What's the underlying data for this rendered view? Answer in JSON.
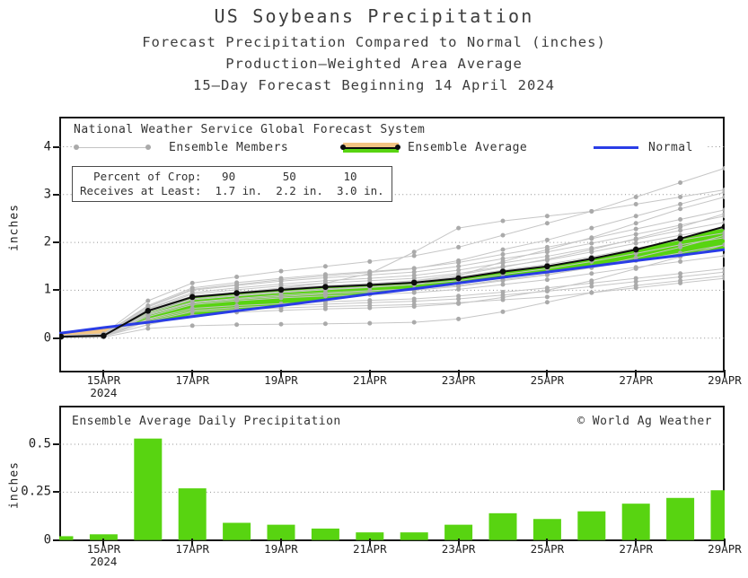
{
  "header": {
    "title": "US Soybeans Precipitation",
    "subtitle1": "Forecast Precipitation Compared to Normal (inches)",
    "subtitle2": "Production–Weighted Area Average",
    "subtitle3": "15–Day Forecast Beginning 14 April 2024"
  },
  "top_chart": {
    "legend": {
      "source": "National Weather Service Global Forecast System",
      "members_label": "Ensemble Members",
      "average_label": "Ensemble Average",
      "normal_label": "Normal"
    },
    "crop_box": {
      "line1": "  Percent of Crop:   90       50       10",
      "line2": "Receives at Least:  1.7 in.  2.2 in.  3.0 in."
    },
    "y_axis_label": "inches",
    "y_ticks": [
      0,
      1,
      2,
      3,
      4
    ]
  },
  "bottom_chart": {
    "title": "Ensemble Average Daily Precipitation",
    "credit": "© World Ag Weather",
    "y_axis_label": "inches",
    "y_ticks": [
      0,
      0.25,
      0.5
    ]
  },
  "x_ticks": [
    {
      "day": 1,
      "label": "15APR",
      "sub": "2024"
    },
    {
      "day": 3,
      "label": "17APR"
    },
    {
      "day": 5,
      "label": "19APR"
    },
    {
      "day": 7,
      "label": "21APR"
    },
    {
      "day": 9,
      "label": "23APR"
    },
    {
      "day": 11,
      "label": "25APR"
    },
    {
      "day": 13,
      "label": "27APR"
    },
    {
      "day": 15,
      "label": "29APR"
    }
  ],
  "colors": {
    "green": "#58d411",
    "orange": "#f2c583",
    "blue": "#2a3de6",
    "member_line": "#c6c6c6",
    "member_dot": "#aaaaaa",
    "average_black": "#0d0d0d",
    "grid": "#909090",
    "border": "#161616"
  },
  "chart_data": [
    {
      "type": "line",
      "title": "Forecast cumulative precipitation vs normal (inches)",
      "x": [
        "14APR",
        "15APR",
        "16APR",
        "17APR",
        "18APR",
        "19APR",
        "20APR",
        "21APR",
        "22APR",
        "23APR",
        "24APR",
        "25APR",
        "26APR",
        "27APR",
        "28APR",
        "29APR"
      ],
      "ylabel": "inches",
      "ylim": [
        -0.7,
        4.63
      ],
      "yticks": [
        0,
        1,
        2,
        3,
        4
      ],
      "grid": true,
      "legend_position": "top-left-inside",
      "series": [
        {
          "name": "Ensemble Average",
          "values": [
            0.03,
            0.05,
            0.57,
            0.86,
            0.94,
            1.01,
            1.07,
            1.11,
            1.16,
            1.25,
            1.39,
            1.5,
            1.66,
            1.85,
            2.08,
            2.33
          ]
        },
        {
          "name": "Normal",
          "values": [
            0.1,
            0.22,
            0.33,
            0.45,
            0.57,
            0.68,
            0.8,
            0.92,
            1.03,
            1.15,
            1.27,
            1.38,
            1.5,
            1.62,
            1.73,
            1.85
          ]
        }
      ],
      "percentiles": {
        "percent_of_crop": [
          90,
          50,
          10
        ],
        "receives_at_least_in": [
          1.7,
          2.2,
          3.0
        ]
      },
      "ensemble_members": [
        [
          0.02,
          0.03,
          0.35,
          0.55,
          0.6,
          0.63,
          0.66,
          0.68,
          0.7,
          0.74,
          0.8,
          0.86,
          0.95,
          1.05,
          1.15,
          1.25
        ],
        [
          0.02,
          0.04,
          0.4,
          0.62,
          0.68,
          0.72,
          0.76,
          0.79,
          0.82,
          0.88,
          0.96,
          1.05,
          1.15,
          1.25,
          1.35,
          1.45
        ],
        [
          0.03,
          0.05,
          0.45,
          0.7,
          0.78,
          0.84,
          0.88,
          0.91,
          0.95,
          1.02,
          1.12,
          1.22,
          1.35,
          1.48,
          1.6,
          1.72
        ],
        [
          0.03,
          0.05,
          0.5,
          0.75,
          0.83,
          0.9,
          0.95,
          0.99,
          1.03,
          1.1,
          1.22,
          1.33,
          1.47,
          1.62,
          1.78,
          1.95
        ],
        [
          0.03,
          0.06,
          0.55,
          0.82,
          0.9,
          0.97,
          1.03,
          1.07,
          1.12,
          1.2,
          1.33,
          1.45,
          1.6,
          1.77,
          1.95,
          2.1
        ],
        [
          0.04,
          0.06,
          0.58,
          0.88,
          0.96,
          1.04,
          1.1,
          1.14,
          1.19,
          1.28,
          1.42,
          1.54,
          1.7,
          1.88,
          2.05,
          2.2
        ],
        [
          0.04,
          0.07,
          0.6,
          0.92,
          1.01,
          1.09,
          1.15,
          1.2,
          1.25,
          1.35,
          1.5,
          1.63,
          1.8,
          1.98,
          2.15,
          2.3
        ],
        [
          0.04,
          0.07,
          0.62,
          0.95,
          1.05,
          1.13,
          1.2,
          1.25,
          1.31,
          1.42,
          1.57,
          1.71,
          1.88,
          2.06,
          2.25,
          2.42
        ],
        [
          0.05,
          0.08,
          0.65,
          1.0,
          1.1,
          1.19,
          1.26,
          1.32,
          1.38,
          1.5,
          1.66,
          1.8,
          1.98,
          2.17,
          2.36,
          2.55
        ],
        [
          0.05,
          0.08,
          0.68,
          1.05,
          1.16,
          1.25,
          1.33,
          1.39,
          1.46,
          1.58,
          1.75,
          1.9,
          2.08,
          2.28,
          2.48,
          2.68
        ],
        [
          0.03,
          0.05,
          0.52,
          0.8,
          0.88,
          0.95,
          1.01,
          1.06,
          1.12,
          1.3,
          1.6,
          1.85,
          2.1,
          2.4,
          2.7,
          2.95
        ],
        [
          0.04,
          0.07,
          0.66,
          1.02,
          1.12,
          1.22,
          1.3,
          1.37,
          1.45,
          1.62,
          1.85,
          2.05,
          2.3,
          2.55,
          2.8,
          3.05
        ],
        [
          0.03,
          0.06,
          0.55,
          0.85,
          0.95,
          1.05,
          1.15,
          1.35,
          1.8,
          2.3,
          2.45,
          2.55,
          2.65,
          2.8,
          2.95,
          3.1
        ],
        [
          0.05,
          0.09,
          0.78,
          1.15,
          1.28,
          1.4,
          1.5,
          1.6,
          1.72,
          1.9,
          2.15,
          2.4,
          2.65,
          2.95,
          3.25,
          3.55
        ],
        [
          0.02,
          0.04,
          0.28,
          0.48,
          0.54,
          0.58,
          0.61,
          0.63,
          0.66,
          0.72,
          0.85,
          1.0,
          1.2,
          1.45,
          1.7,
          1.95
        ],
        [
          0.03,
          0.05,
          0.48,
          0.73,
          0.81,
          0.87,
          0.92,
          0.96,
          1.0,
          1.08,
          1.2,
          1.32,
          1.48,
          1.68,
          1.9,
          2.15
        ],
        [
          0.04,
          0.06,
          0.57,
          0.87,
          0.96,
          1.03,
          1.09,
          1.14,
          1.2,
          1.32,
          1.48,
          1.65,
          1.85,
          2.08,
          2.32,
          2.6
        ],
        [
          0.02,
          0.03,
          0.38,
          0.58,
          0.64,
          0.68,
          0.71,
          0.74,
          0.77,
          0.82,
          0.9,
          0.98,
          1.08,
          1.18,
          1.28,
          1.38
        ],
        [
          0.01,
          0.02,
          0.2,
          0.26,
          0.28,
          0.29,
          0.3,
          0.31,
          0.33,
          0.4,
          0.55,
          0.75,
          0.95,
          1.1,
          1.2,
          1.3
        ]
      ]
    },
    {
      "type": "bar",
      "title": "Ensemble Average Daily Precipitation",
      "categories": [
        "14APR",
        "15APR",
        "16APR",
        "17APR",
        "18APR",
        "19APR",
        "20APR",
        "21APR",
        "22APR",
        "23APR",
        "24APR",
        "25APR",
        "26APR",
        "27APR",
        "28APR",
        "29APR"
      ],
      "values": [
        0.02,
        0.03,
        0.53,
        0.27,
        0.09,
        0.08,
        0.06,
        0.04,
        0.04,
        0.08,
        0.14,
        0.11,
        0.15,
        0.19,
        0.22,
        0.26
      ],
      "ylabel": "inches",
      "ylim": [
        0,
        0.7
      ],
      "yticks": [
        0,
        0.25,
        0.5
      ],
      "grid": true
    }
  ]
}
